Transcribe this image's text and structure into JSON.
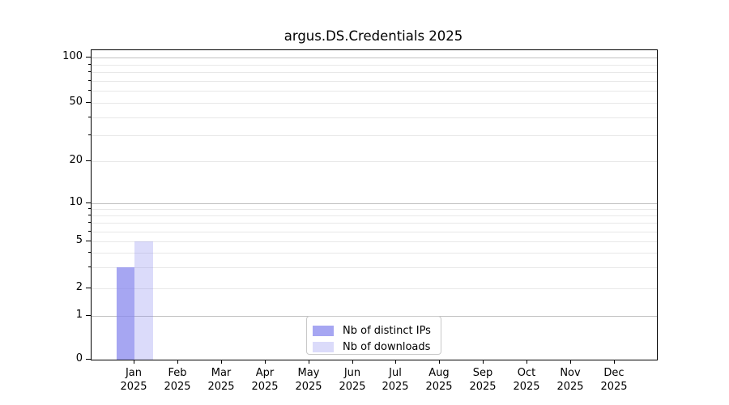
{
  "figure": {
    "title": "argus.DS.Credentials 2025"
  },
  "legend": {
    "entries": [
      {
        "label": "Nb of distinct IPs",
        "color": "#8888ee",
        "alpha": 0.75
      },
      {
        "label": "Nb of downloads",
        "color": "#8888ee",
        "alpha": 0.3
      }
    ]
  },
  "chart_data": {
    "type": "bar",
    "title": "argus.DS.Credentials 2025",
    "categories": [
      "Jan",
      "Feb",
      "Mar",
      "Apr",
      "May",
      "Jun",
      "Jul",
      "Aug",
      "Sep",
      "Oct",
      "Nov",
      "Dec"
    ],
    "category_year": "2025",
    "series": [
      {
        "name": "Nb of distinct IPs",
        "color": "#8888ee",
        "alpha": 0.75,
        "values": [
          3,
          0,
          0,
          0,
          0,
          0,
          0,
          0,
          0,
          0,
          0,
          0
        ]
      },
      {
        "name": "Nb of downloads",
        "color": "#8888ee",
        "alpha": 0.3,
        "values": [
          5,
          0,
          0,
          0,
          0,
          0,
          0,
          0,
          0,
          0,
          0,
          0
        ]
      }
    ],
    "xlabel": "",
    "ylabel": "",
    "yscale": "symlog",
    "ylim": [
      0,
      100
    ],
    "yticks": [
      0,
      1,
      2,
      5,
      10,
      20,
      50,
      100
    ],
    "major_gridline_values": [
      1,
      10,
      100
    ],
    "minor_gridline_values": [
      3,
      4,
      6,
      7,
      8,
      9,
      30,
      40,
      60,
      70,
      80,
      90
    ],
    "grid": "horizontal",
    "legend_position": "lower center",
    "major_grid_color": "#c0c0c0",
    "minor_grid_color": "#e8e8e8"
  }
}
